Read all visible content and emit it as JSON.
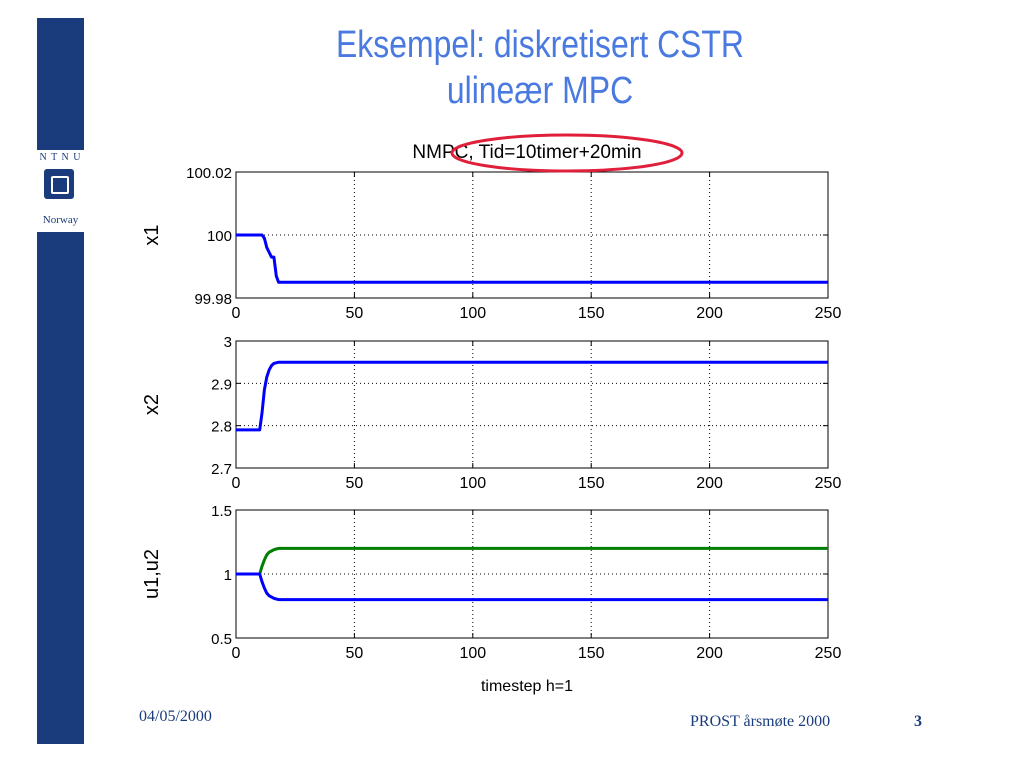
{
  "slide": {
    "title_line1": "Eksempel: diskretisert CSTR",
    "title_line2": "ulineær MPC",
    "logo_top": "N T N U",
    "logo_bottom": "Norway",
    "footer_date": "04/05/2000",
    "footer_conference": "PROST årsmøte 2000",
    "page_number": "3"
  },
  "colors": {
    "title": "#4a7ae0",
    "sidebar": "#1a3c7c",
    "series_blue": "#0000ff",
    "series_green": "#007f00",
    "highlight_ellipse": "#e0203a"
  },
  "chart_data": [
    {
      "type": "line",
      "title": "NMPC, Tid=10timer+20min",
      "title_highlighted_part": "Tid=10timer+20min",
      "ylabel": "x1",
      "xlabel": "",
      "xlim": [
        0,
        250
      ],
      "ylim": [
        99.98,
        100.02
      ],
      "xticks": [
        0,
        50,
        100,
        150,
        200,
        250
      ],
      "yticks": [
        99.98,
        100,
        100.02
      ],
      "ytick_labels": [
        "99.98",
        "100",
        "100.02"
      ],
      "grid": true,
      "series": [
        {
          "color": "#0000ff",
          "x": [
            0,
            11,
            12,
            13,
            15,
            16,
            17,
            18,
            250
          ],
          "y": [
            100,
            100,
            99.999,
            99.996,
            99.993,
            99.993,
            99.987,
            99.985,
            99.985
          ]
        }
      ]
    },
    {
      "type": "line",
      "title": "",
      "ylabel": "x2",
      "xlabel": "",
      "xlim": [
        0,
        250
      ],
      "ylim": [
        2.7,
        3
      ],
      "xticks": [
        0,
        50,
        100,
        150,
        200,
        250
      ],
      "yticks": [
        2.7,
        2.8,
        2.9,
        3
      ],
      "ytick_labels": [
        "2.7",
        "2.8",
        "2.9",
        "3"
      ],
      "grid": true,
      "series": [
        {
          "color": "#0000ff",
          "x": [
            0,
            10,
            11,
            12,
            13,
            14,
            15,
            16,
            18,
            250
          ],
          "y": [
            2.79,
            2.79,
            2.83,
            2.885,
            2.915,
            2.932,
            2.942,
            2.947,
            2.95,
            2.95
          ]
        }
      ]
    },
    {
      "type": "line",
      "title": "",
      "ylabel": "u1,u2",
      "xlabel": "timestep h=1",
      "xlim": [
        0,
        250
      ],
      "ylim": [
        0.5,
        1.5
      ],
      "xticks": [
        0,
        50,
        100,
        150,
        200,
        250
      ],
      "yticks": [
        0.5,
        1,
        1.5
      ],
      "ytick_labels": [
        "0.5",
        "1",
        "1.5"
      ],
      "grid": true,
      "series": [
        {
          "color": "#007f00",
          "x": [
            0,
            10,
            11,
            12,
            13,
            14,
            15,
            16,
            17,
            18,
            250
          ],
          "y": [
            1,
            1,
            1.06,
            1.11,
            1.15,
            1.17,
            1.18,
            1.19,
            1.195,
            1.2,
            1.2
          ]
        },
        {
          "color": "#0000ff",
          "x": [
            0,
            10,
            11,
            12,
            13,
            14,
            15,
            16,
            17,
            18,
            250
          ],
          "y": [
            1,
            1,
            0.94,
            0.89,
            0.85,
            0.83,
            0.82,
            0.81,
            0.805,
            0.8,
            0.8
          ]
        }
      ]
    }
  ]
}
